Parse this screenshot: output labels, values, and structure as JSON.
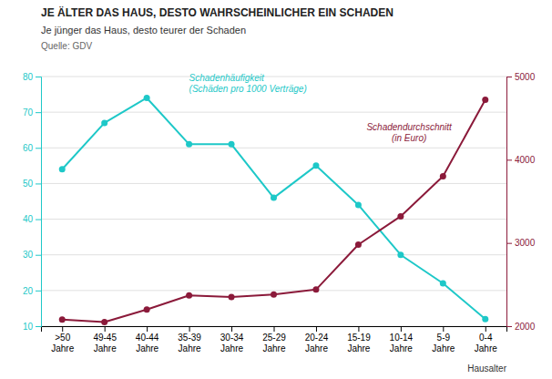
{
  "chart_data": {
    "type": "line",
    "title": "JE ÄLTER DAS HAUS, DESTO WAHRSCHEINLICHER EIN SCHADEN",
    "subtitle": "Je jünger das Haus, desto teurer der Schaden",
    "source": "Quelle: GDV",
    "xlabel": "Hausalter",
    "categories": [
      ">50\nJahre",
      "49-45\nJahre",
      "40-44\nJahre",
      "35-39\nJahre",
      "30-34\nJahre",
      "25-29\nJahre",
      "20-24\nJahre",
      "15-19\nJahre",
      "10-14\nJahre",
      "5-9\nJahre",
      "0-4\nJahre"
    ],
    "series": [
      {
        "name": "Schadenhäufigkeit\n(Schäden pro 1000 Verträge)",
        "color": "#1ec8c8",
        "marker": "circle",
        "values": [
          54,
          67,
          74,
          61,
          61,
          46,
          55,
          44,
          30,
          22,
          12
        ]
      },
      {
        "name": "Schadendurchschnitt\n(in Euro)",
        "color": "#8b1a3a",
        "marker": "circle",
        "axis": "y2",
        "values": [
          2080,
          2050,
          2200,
          2370,
          2350,
          2380,
          2440,
          2980,
          3320,
          3800,
          4720
        ]
      }
    ],
    "ylim": [
      10,
      80
    ],
    "yticks": [
      10,
      20,
      30,
      40,
      50,
      60,
      70,
      80
    ],
    "y2lim": [
      2000,
      5000
    ],
    "y2ticks": [
      2000,
      3000,
      4000,
      5000
    ],
    "grid": true
  }
}
